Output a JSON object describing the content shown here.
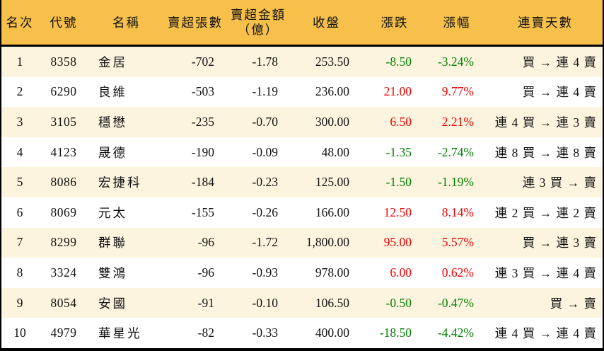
{
  "theme": {
    "accent": "#f7c04b",
    "cream": "#fdf4df",
    "border": "#000000",
    "text": "#111111",
    "up": "#f20000",
    "down": "#008000"
  },
  "chart_data": {
    "type": "table",
    "columns": [
      {
        "key": "rank",
        "label": "名次"
      },
      {
        "key": "code",
        "label": "代號"
      },
      {
        "key": "name",
        "label": "名稱"
      },
      {
        "key": "sell_volume",
        "label": "賣超張數"
      },
      {
        "key": "sell_amount",
        "label": "賣超金額",
        "label2": "（億）"
      },
      {
        "key": "close",
        "label": "收盤"
      },
      {
        "key": "change",
        "label": "漲跌"
      },
      {
        "key": "change_pct",
        "label": "漲幅"
      },
      {
        "key": "streak",
        "label": "連賣天數"
      }
    ],
    "rows": [
      {
        "rank": "1",
        "code": "8358",
        "name": "金居",
        "sell_volume": "-702",
        "sell_amount": "-1.78",
        "close": "253.50",
        "change": "-8.50",
        "change_pct": "-3.24%",
        "change_dir": "down",
        "streak": "買 → 連 4 賣"
      },
      {
        "rank": "2",
        "code": "6290",
        "name": "良維",
        "sell_volume": "-503",
        "sell_amount": "-1.19",
        "close": "236.00",
        "change": "21.00",
        "change_pct": "9.77%",
        "change_dir": "up",
        "streak": "買 → 連 4 賣"
      },
      {
        "rank": "3",
        "code": "3105",
        "name": "穩懋",
        "sell_volume": "-235",
        "sell_amount": "-0.70",
        "close": "300.00",
        "change": "6.50",
        "change_pct": "2.21%",
        "change_dir": "up",
        "streak": "連 4 買 → 連 3 賣"
      },
      {
        "rank": "4",
        "code": "4123",
        "name": "晟德",
        "sell_volume": "-190",
        "sell_amount": "-0.09",
        "close": "48.00",
        "change": "-1.35",
        "change_pct": "-2.74%",
        "change_dir": "down",
        "streak": "連 8 買 → 連 8 賣"
      },
      {
        "rank": "5",
        "code": "8086",
        "name": "宏捷科",
        "sell_volume": "-184",
        "sell_amount": "-0.23",
        "close": "125.00",
        "change": "-1.50",
        "change_pct": "-1.19%",
        "change_dir": "down",
        "streak": "連 3 買 → 賣"
      },
      {
        "rank": "6",
        "code": "8069",
        "name": "元太",
        "sell_volume": "-155",
        "sell_amount": "-0.26",
        "close": "166.00",
        "change": "12.50",
        "change_pct": "8.14%",
        "change_dir": "up",
        "streak": "連 2 買 → 連 2 賣"
      },
      {
        "rank": "7",
        "code": "8299",
        "name": "群聯",
        "sell_volume": "-96",
        "sell_amount": "-1.72",
        "close": "1,800.00",
        "change": "95.00",
        "change_pct": "5.57%",
        "change_dir": "up",
        "streak": "買 → 連 3 賣"
      },
      {
        "rank": "8",
        "code": "3324",
        "name": "雙鴻",
        "sell_volume": "-96",
        "sell_amount": "-0.93",
        "close": "978.00",
        "change": "6.00",
        "change_pct": "0.62%",
        "change_dir": "up",
        "streak": "連 3 買 → 連 4 賣"
      },
      {
        "rank": "9",
        "code": "8054",
        "name": "安國",
        "sell_volume": "-91",
        "sell_amount": "-0.10",
        "close": "106.50",
        "change": "-0.50",
        "change_pct": "-0.47%",
        "change_dir": "down",
        "streak": "買 → 賣"
      },
      {
        "rank": "10",
        "code": "4979",
        "name": "華星光",
        "sell_volume": "-82",
        "sell_amount": "-0.33",
        "close": "400.00",
        "change": "-18.50",
        "change_pct": "-4.42%",
        "change_dir": "down",
        "streak": "連 4 買 → 連 4 賣"
      }
    ]
  }
}
